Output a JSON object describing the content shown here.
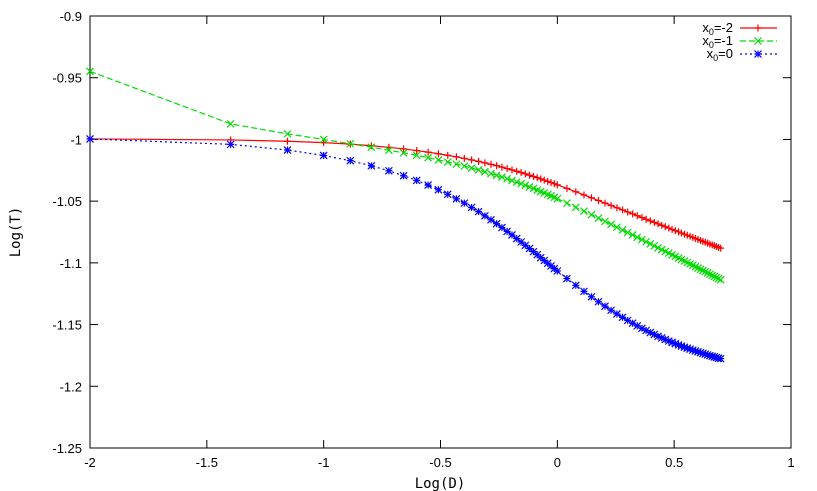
{
  "chart_data": {
    "type": "line",
    "title": "",
    "xlabel": "Log(D)",
    "ylabel": "Log(T)",
    "xlim": [
      -2,
      1
    ],
    "ylim": [
      -1.25,
      -0.9
    ],
    "xticks": [
      -2,
      -1.5,
      -1,
      -0.5,
      0,
      0.5,
      1
    ],
    "xtick_labels": [
      "-2",
      "-1.5",
      "-1",
      "-0.5",
      "0",
      "0.5",
      "1"
    ],
    "yticks": [
      -0.9,
      -0.95,
      -1,
      -1.05,
      -1.1,
      -1.15,
      -1.2,
      -1.25
    ],
    "ytick_labels": [
      "-0.9",
      "-0.95",
      "-1",
      "-1.05",
      "-1.1",
      "-1.15",
      "-1.2",
      "-1.25"
    ],
    "grid": false,
    "legend_position": "top-right",
    "series": [
      {
        "name": "x0=-2",
        "legend_base": "x",
        "legend_sub": "0",
        "legend_rest": "=-2",
        "color": "#ff0000",
        "line_style": "solid",
        "marker": "plus",
        "x": [
          -2.0,
          -1.398,
          -1.155,
          -1.0,
          -0.886,
          -0.796,
          -0.721,
          -0.658,
          -0.602,
          -0.553,
          -0.509,
          -0.469,
          -0.432,
          -0.398,
          -0.367,
          -0.337,
          -0.31,
          -0.284,
          -0.26,
          -0.237,
          -0.215,
          -0.194,
          -0.174,
          -0.155,
          -0.137,
          -0.119,
          -0.102,
          -0.086,
          -0.071,
          -0.056,
          -0.041,
          -0.027,
          -0.013,
          0.0,
          0.041,
          0.079,
          0.114,
          0.146,
          0.176,
          0.204,
          0.23,
          0.255,
          0.279,
          0.301,
          0.322,
          0.342,
          0.362,
          0.38,
          0.398,
          0.415,
          0.431,
          0.447,
          0.462,
          0.477,
          0.491,
          0.505,
          0.519,
          0.531,
          0.544,
          0.556,
          0.568,
          0.58,
          0.591,
          0.602,
          0.613,
          0.623,
          0.633,
          0.643,
          0.653,
          0.663,
          0.672,
          0.681,
          0.69,
          0.699
        ],
        "y": [
          -0.9996,
          -1.0004,
          -1.0015,
          -1.0026,
          -1.0038,
          -1.0051,
          -1.0064,
          -1.0077,
          -1.009,
          -1.0103,
          -1.0116,
          -1.0129,
          -1.0141,
          -1.0154,
          -1.0166,
          -1.0178,
          -1.019,
          -1.0202,
          -1.0213,
          -1.0225,
          -1.0236,
          -1.0247,
          -1.0258,
          -1.0268,
          -1.0279,
          -1.029,
          -1.03,
          -1.031,
          -1.032,
          -1.033,
          -1.034,
          -1.0349,
          -1.0359,
          -1.0368,
          -1.0397,
          -1.0424,
          -1.045,
          -1.0473,
          -1.0495,
          -1.0516,
          -1.0535,
          -1.0554,
          -1.0571,
          -1.0588,
          -1.0603,
          -1.0618,
          -1.0633,
          -1.0647,
          -1.066,
          -1.0672,
          -1.0684,
          -1.0696,
          -1.0707,
          -1.0718,
          -1.0729,
          -1.0739,
          -1.0749,
          -1.0758,
          -1.0768,
          -1.0776,
          -1.0785,
          -1.0794,
          -1.0802,
          -1.081,
          -1.0818,
          -1.0826,
          -1.0833,
          -1.084,
          -1.0848,
          -1.0855,
          -1.0861,
          -1.0868,
          -1.0875,
          -1.0881
        ]
      },
      {
        "name": "x0=-1",
        "legend_base": "x",
        "legend_sub": "0",
        "legend_rest": "=-1",
        "color": "#00dd00",
        "line_style": "dashed",
        "marker": "cross",
        "x": [
          -2.0,
          -1.398,
          -1.155,
          -1.0,
          -0.886,
          -0.796,
          -0.721,
          -0.658,
          -0.602,
          -0.553,
          -0.509,
          -0.469,
          -0.432,
          -0.398,
          -0.367,
          -0.337,
          -0.31,
          -0.284,
          -0.26,
          -0.237,
          -0.215,
          -0.194,
          -0.174,
          -0.155,
          -0.137,
          -0.119,
          -0.102,
          -0.086,
          -0.071,
          -0.056,
          -0.041,
          -0.027,
          -0.013,
          0.0,
          0.041,
          0.079,
          0.114,
          0.146,
          0.176,
          0.204,
          0.23,
          0.255,
          0.279,
          0.301,
          0.322,
          0.342,
          0.362,
          0.38,
          0.398,
          0.415,
          0.431,
          0.447,
          0.462,
          0.477,
          0.491,
          0.505,
          0.519,
          0.531,
          0.544,
          0.556,
          0.568,
          0.58,
          0.591,
          0.602,
          0.613,
          0.623,
          0.633,
          0.643,
          0.653,
          0.663,
          0.672,
          0.681,
          0.69,
          0.699
        ],
        "y": [
          -0.9448,
          -0.9874,
          -0.9955,
          -1.0,
          -1.0035,
          -1.0063,
          -1.0087,
          -1.0109,
          -1.0129,
          -1.0148,
          -1.0166,
          -1.0183,
          -1.02,
          -1.0216,
          -1.0232,
          -1.0247,
          -1.0262,
          -1.0277,
          -1.0291,
          -1.0305,
          -1.0319,
          -1.0333,
          -1.0346,
          -1.0359,
          -1.0372,
          -1.0385,
          -1.0397,
          -1.041,
          -1.0422,
          -1.0434,
          -1.0446,
          -1.0457,
          -1.0469,
          -1.048,
          -1.0516,
          -1.055,
          -1.0581,
          -1.061,
          -1.0638,
          -1.0664,
          -1.0688,
          -1.0711,
          -1.0733,
          -1.0754,
          -1.0774,
          -1.0793,
          -1.0811,
          -1.0829,
          -1.0846,
          -1.0862,
          -1.0878,
          -1.0893,
          -1.0907,
          -1.0921,
          -1.0935,
          -1.0948,
          -1.0961,
          -1.0973,
          -1.0985,
          -1.0997,
          -1.1009,
          -1.102,
          -1.1031,
          -1.1042,
          -1.1052,
          -1.1062,
          -1.1072,
          -1.1082,
          -1.1092,
          -1.1101,
          -1.111,
          -1.1119,
          -1.1128,
          -1.1137
        ]
      },
      {
        "name": "x0=0",
        "legend_base": "x",
        "legend_sub": "0",
        "legend_rest": "=0",
        "color": "#0000ff",
        "line_style": "dotted",
        "marker": "star",
        "x": [
          -2.0,
          -1.398,
          -1.155,
          -1.0,
          -0.886,
          -0.796,
          -0.721,
          -0.658,
          -0.602,
          -0.553,
          -0.509,
          -0.469,
          -0.432,
          -0.398,
          -0.367,
          -0.337,
          -0.31,
          -0.284,
          -0.26,
          -0.237,
          -0.215,
          -0.194,
          -0.174,
          -0.155,
          -0.137,
          -0.119,
          -0.102,
          -0.086,
          -0.071,
          -0.056,
          -0.041,
          -0.027,
          -0.013,
          0.0,
          0.041,
          0.079,
          0.114,
          0.146,
          0.176,
          0.204,
          0.23,
          0.255,
          0.279,
          0.301,
          0.322,
          0.342,
          0.362,
          0.38,
          0.398,
          0.415,
          0.431,
          0.447,
          0.462,
          0.477,
          0.491,
          0.505,
          0.519,
          0.531,
          0.544,
          0.556,
          0.568,
          0.58,
          0.591,
          0.602,
          0.613,
          0.623,
          0.633,
          0.643,
          0.653,
          0.663,
          0.672,
          0.681,
          0.69,
          0.699
        ],
        "y": [
          -0.9996,
          -1.004,
          -1.0086,
          -1.013,
          -1.0172,
          -1.0214,
          -1.0254,
          -1.0294,
          -1.0332,
          -1.037,
          -1.0408,
          -1.0445,
          -1.0481,
          -1.0516,
          -1.0551,
          -1.0585,
          -1.0619,
          -1.0651,
          -1.0683,
          -1.0714,
          -1.0745,
          -1.0774,
          -1.0803,
          -1.0831,
          -1.0858,
          -1.0884,
          -1.0909,
          -1.0934,
          -1.0958,
          -1.0981,
          -1.1003,
          -1.1025,
          -1.1046,
          -1.1066,
          -1.1127,
          -1.1182,
          -1.1231,
          -1.1275,
          -1.1315,
          -1.1351,
          -1.1384,
          -1.1414,
          -1.1441,
          -1.1466,
          -1.1489,
          -1.151,
          -1.153,
          -1.1548,
          -1.1565,
          -1.158,
          -1.1595,
          -1.1608,
          -1.1621,
          -1.1633,
          -1.1644,
          -1.1655,
          -1.1665,
          -1.1674,
          -1.1683,
          -1.1691,
          -1.1699,
          -1.1707,
          -1.1714,
          -1.1721,
          -1.1728,
          -1.1734,
          -1.174,
          -1.1746,
          -1.1752,
          -1.1757,
          -1.1762,
          -1.1767,
          -1.1772,
          -1.1776
        ]
      }
    ]
  }
}
